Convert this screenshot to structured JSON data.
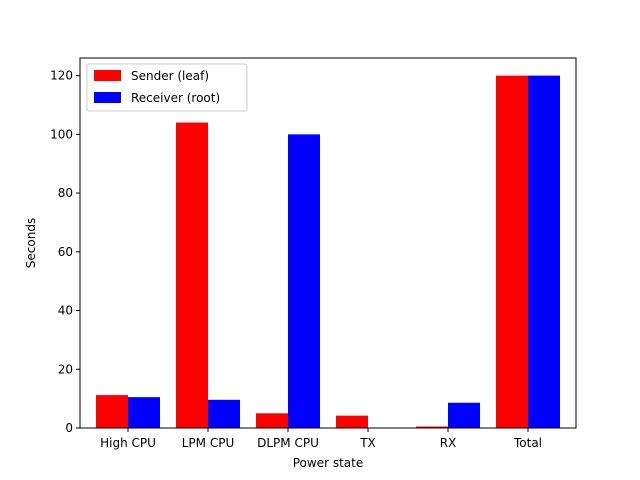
{
  "chart_data": {
    "type": "bar",
    "title": "",
    "xlabel": "Power state",
    "ylabel": "Seconds",
    "categories": [
      "High CPU",
      "LPM CPU",
      "DLPM CPU",
      "TX",
      "RX",
      "Total"
    ],
    "series": [
      {
        "name": "Sender (leaf)",
        "color": "#ff0000",
        "values": [
          11.2,
          104.0,
          5.0,
          4.2,
          0.5,
          120.0
        ]
      },
      {
        "name": "Receiver (root)",
        "color": "#0000ff",
        "values": [
          10.5,
          9.6,
          100.0,
          0.0,
          8.6,
          120.0
        ]
      }
    ],
    "ylim": [
      0,
      126
    ],
    "yticks": [
      0,
      20,
      40,
      60,
      80,
      100,
      120
    ],
    "grid": false,
    "legend": "top-left"
  }
}
